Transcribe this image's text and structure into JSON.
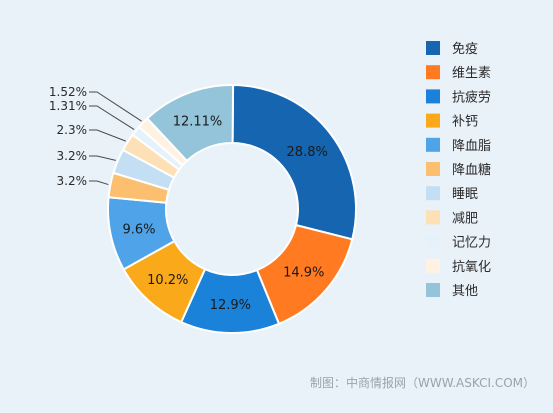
{
  "chart_data": {
    "type": "pie",
    "style": "donut",
    "legend_position": "right",
    "categories": [
      "免疫",
      "维生素",
      "抗疲劳",
      "补钙",
      "降血脂",
      "降血糖",
      "睡眠",
      "减肥",
      "记忆力",
      "抗氧化",
      "其他"
    ],
    "values": [
      28.8,
      14.9,
      12.9,
      10.2,
      9.6,
      3.2,
      3.2,
      2.3,
      1.31,
      1.52,
      12.11
    ],
    "labels": [
      "28.8%",
      "14.9%",
      "12.9%",
      "10.2%",
      "9.6%",
      "3.2%",
      "3.2%",
      "2.3%",
      "1.31%",
      "1.52%",
      "12.11%"
    ],
    "colors": [
      "#1565b0",
      "#ff7a21",
      "#1b82d9",
      "#f9a91a",
      "#4fa3e8",
      "#fbbf6f",
      "#c4dff3",
      "#fde0b5",
      "#e6f2fb",
      "#fff2e2",
      "#93c4d9"
    ]
  },
  "source": "制图：中商情报网（WWW.ASKCI.COM）"
}
